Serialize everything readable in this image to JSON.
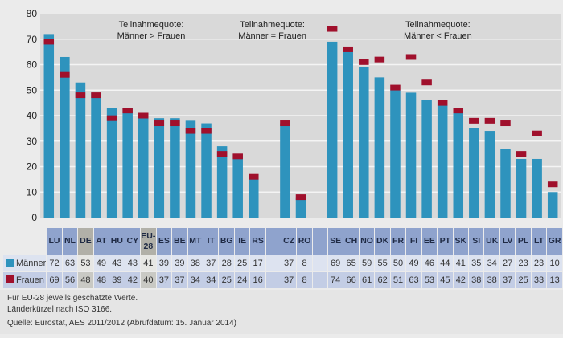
{
  "chart_data": {
    "type": "bar",
    "title": "",
    "xlabel": "",
    "ylabel": "",
    "ylim": [
      0,
      80
    ],
    "yticks": [
      0,
      10,
      20,
      30,
      40,
      50,
      60,
      70,
      80
    ],
    "grid": true,
    "groups": [
      {
        "annotation_line1": "Teilnahmequote:",
        "annotation_line2": "Männer > Frauen",
        "categories": [
          "LU",
          "NL",
          "DE",
          "AT",
          "HU",
          "CY",
          "EU-28",
          "ES",
          "BE",
          "MT",
          "IT",
          "BG",
          "IE",
          "RS"
        ],
        "maenner": [
          72,
          63,
          53,
          49,
          43,
          43,
          41,
          39,
          39,
          38,
          37,
          28,
          25,
          17
        ],
        "frauen": [
          69,
          56,
          48,
          48,
          39,
          42,
          40,
          37,
          37,
          34,
          34,
          25,
          24,
          16
        ]
      },
      {
        "annotation_line1": "Teilnahmequote:",
        "annotation_line2": "Männer = Frauen",
        "categories": [
          "CZ",
          "RO"
        ],
        "maenner": [
          37,
          8
        ],
        "frauen": [
          37,
          8
        ]
      },
      {
        "annotation_line1": "Teilnahmequote:",
        "annotation_line2": "Männer < Frauen",
        "categories": [
          "SE",
          "CH",
          "NO",
          "DK",
          "FR",
          "FI",
          "EE",
          "PT",
          "SK",
          "SI",
          "UK",
          "LV",
          "PL",
          "LT",
          "GR"
        ],
        "maenner": [
          69,
          65,
          59,
          55,
          50,
          49,
          46,
          44,
          41,
          35,
          34,
          27,
          23,
          23,
          10
        ],
        "frauen": [
          74,
          66,
          61,
          62,
          51,
          63,
          53,
          45,
          42,
          38,
          38,
          37,
          25,
          33,
          13
        ]
      }
    ],
    "highlighted_categories": [
      "DE",
      "EU-28"
    ],
    "series": [
      {
        "name": "Männer",
        "color": "#2e93bd",
        "style": "bar"
      },
      {
        "name": "Frauen",
        "color": "#a0102c",
        "style": "marker"
      }
    ],
    "legend": "table-left"
  },
  "table": {
    "row_labels": [
      "Männer",
      "Frauen"
    ]
  },
  "footer": {
    "note1": "Für EU-28 jeweils geschätzte Werte.",
    "note2": "Länderkürzel nach ISO 3166.",
    "source": "Quelle: Eurostat, AES 2011/2012 (Abrufdatum: 15. Januar 2014)"
  },
  "colors": {
    "maenner": "#2e93bd",
    "frauen": "#a0102c",
    "plot_bg": "#d9d9d9",
    "header_bg": "#8fa3cd",
    "highlight_bg": "#b1b0a8"
  }
}
